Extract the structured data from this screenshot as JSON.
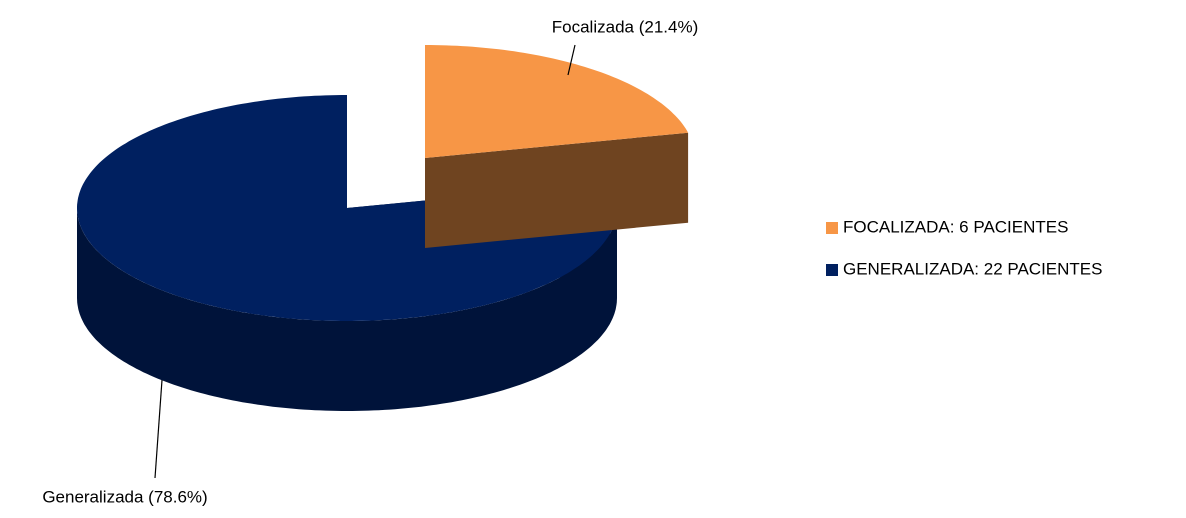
{
  "chart_data": {
    "type": "pie3d",
    "categories": [
      "FOCALIZADA: 6 PACIENTES",
      "GENERALIZADA: 22 PACIENTES"
    ],
    "values": [
      21.4,
      78.6
    ],
    "value_labels": [
      "Focalizada (21.4%)",
      "Generalizada (78.6%)"
    ],
    "colors": [
      "#f79646",
      "#002060"
    ],
    "legend": "right"
  }
}
